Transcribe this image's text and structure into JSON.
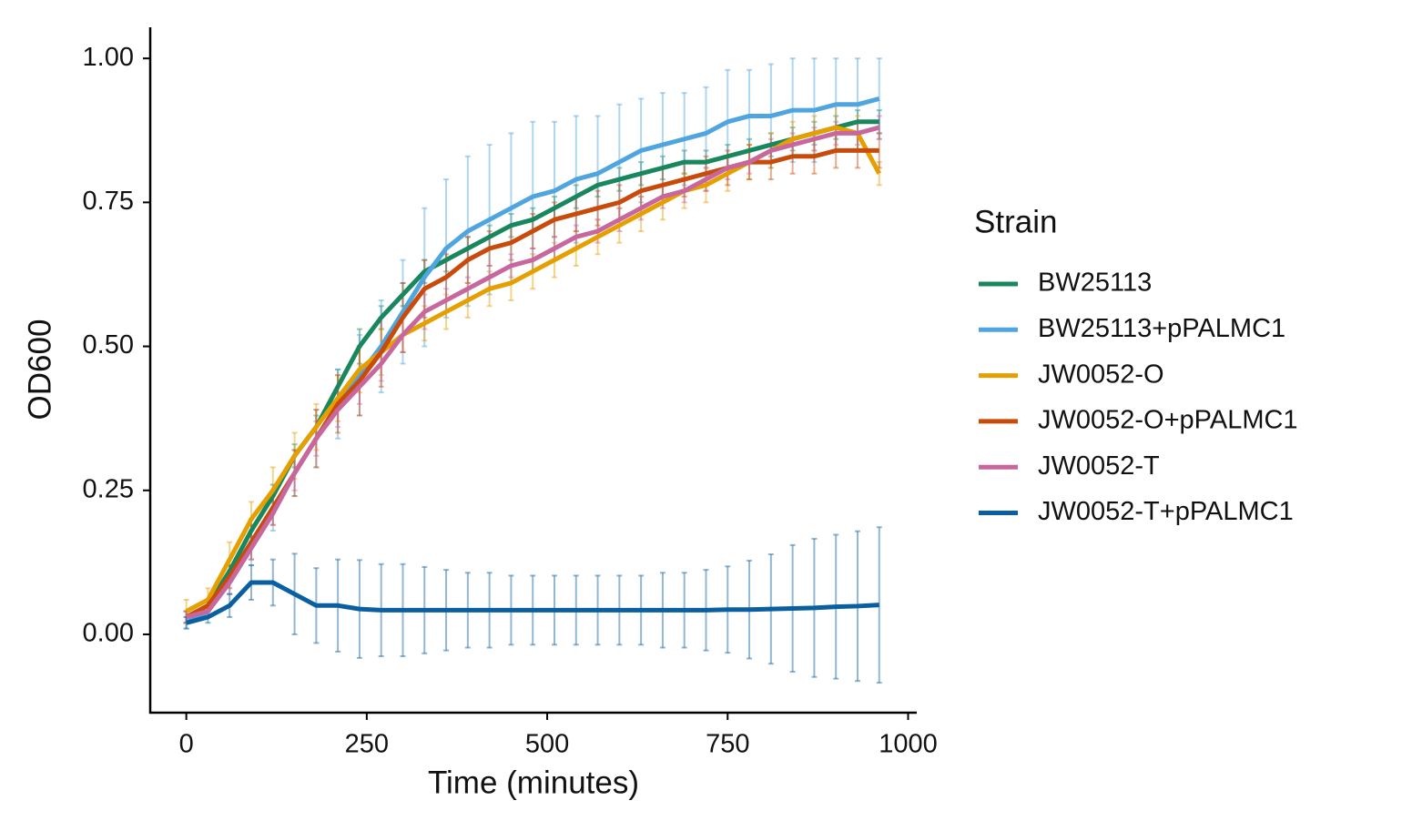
{
  "chart_data": {
    "type": "line",
    "x_label": "Time (minutes)",
    "y_label": "OD600",
    "legend_title": "Strain",
    "legend_position": "right",
    "xlim": [
      -50,
      1012
    ],
    "xticks": [
      0,
      250,
      500,
      750,
      1000
    ],
    "ylim": [
      -0.136,
      1.054
    ],
    "yticks": [
      {
        "value": 0,
        "label": "0.00"
      },
      {
        "value": 0.25,
        "label": "0.25"
      },
      {
        "value": 0.5,
        "label": "0.50"
      },
      {
        "value": 0.75,
        "label": "0.75"
      },
      {
        "value": 1,
        "label": "1.00"
      }
    ],
    "x": [
      0,
      30,
      60,
      90,
      120,
      150,
      180,
      210,
      240,
      270,
      300,
      330,
      360,
      390,
      420,
      450,
      480,
      510,
      540,
      570,
      600,
      630,
      660,
      690,
      720,
      750,
      780,
      810,
      840,
      870,
      900,
      930,
      960
    ],
    "series": [
      {
        "name": "BW25113",
        "color": "#18875d",
        "values": [
          0.03,
          0.05,
          0.11,
          0.18,
          0.24,
          0.31,
          0.36,
          0.43,
          0.5,
          0.55,
          0.59,
          0.63,
          0.65,
          0.67,
          0.69,
          0.71,
          0.72,
          0.74,
          0.76,
          0.78,
          0.79,
          0.8,
          0.81,
          0.82,
          0.82,
          0.83,
          0.84,
          0.85,
          0.86,
          0.87,
          0.88,
          0.89,
          0.89
        ],
        "errors": [
          0.01,
          0.01,
          0.01,
          0.02,
          0.02,
          0.02,
          0.02,
          0.03,
          0.03,
          0.02,
          0.02,
          0.02,
          0.02,
          0.02,
          0.02,
          0.02,
          0.02,
          0.02,
          0.02,
          0.02,
          0.02,
          0.02,
          0.02,
          0.02,
          0.02,
          0.02,
          0.02,
          0.02,
          0.02,
          0.02,
          0.02,
          0.02,
          0.02
        ]
      },
      {
        "name": "BW25113+pPALMC1",
        "color": "#4ea5e0",
        "values": [
          0.02,
          0.04,
          0.09,
          0.15,
          0.21,
          0.28,
          0.34,
          0.4,
          0.45,
          0.5,
          0.56,
          0.62,
          0.67,
          0.7,
          0.72,
          0.74,
          0.76,
          0.77,
          0.79,
          0.8,
          0.82,
          0.84,
          0.85,
          0.86,
          0.87,
          0.89,
          0.9,
          0.9,
          0.91,
          0.91,
          0.92,
          0.92,
          0.93
        ],
        "errors": [
          0.01,
          0.01,
          0.02,
          0.03,
          0.03,
          0.04,
          0.05,
          0.06,
          0.07,
          0.08,
          0.09,
          0.12,
          0.12,
          0.13,
          0.13,
          0.13,
          0.13,
          0.12,
          0.11,
          0.1,
          0.1,
          0.09,
          0.09,
          0.08,
          0.08,
          0.09,
          0.08,
          0.09,
          0.09,
          0.09,
          0.08,
          0.08,
          0.07
        ]
      },
      {
        "name": "JW0052-O",
        "color": "#e69f00",
        "values": [
          0.04,
          0.06,
          0.13,
          0.2,
          0.25,
          0.31,
          0.36,
          0.41,
          0.46,
          0.49,
          0.52,
          0.54,
          0.56,
          0.58,
          0.6,
          0.61,
          0.63,
          0.65,
          0.67,
          0.69,
          0.71,
          0.73,
          0.75,
          0.77,
          0.78,
          0.8,
          0.82,
          0.84,
          0.86,
          0.87,
          0.88,
          0.87,
          0.8
        ],
        "errors": [
          0.02,
          0.02,
          0.03,
          0.03,
          0.04,
          0.04,
          0.04,
          0.04,
          0.04,
          0.04,
          0.03,
          0.03,
          0.03,
          0.03,
          0.03,
          0.03,
          0.03,
          0.03,
          0.03,
          0.03,
          0.03,
          0.03,
          0.03,
          0.03,
          0.03,
          0.03,
          0.03,
          0.03,
          0.03,
          0.03,
          0.04,
          0.03,
          0.02
        ]
      },
      {
        "name": "JW0052-O+pPALMC1",
        "color": "#c94b0c",
        "values": [
          0.03,
          0.05,
          0.1,
          0.16,
          0.22,
          0.28,
          0.34,
          0.4,
          0.44,
          0.49,
          0.55,
          0.6,
          0.62,
          0.65,
          0.67,
          0.68,
          0.7,
          0.72,
          0.73,
          0.74,
          0.75,
          0.77,
          0.78,
          0.79,
          0.8,
          0.81,
          0.82,
          0.82,
          0.83,
          0.83,
          0.84,
          0.84,
          0.84
        ],
        "errors": [
          0.01,
          0.01,
          0.02,
          0.03,
          0.03,
          0.04,
          0.05,
          0.05,
          0.06,
          0.06,
          0.06,
          0.05,
          0.04,
          0.04,
          0.03,
          0.03,
          0.03,
          0.03,
          0.03,
          0.03,
          0.03,
          0.03,
          0.03,
          0.03,
          0.03,
          0.03,
          0.03,
          0.03,
          0.03,
          0.03,
          0.03,
          0.03,
          0.03
        ]
      },
      {
        "name": "JW0052-T",
        "color": "#c7679e",
        "values": [
          0.03,
          0.04,
          0.09,
          0.15,
          0.21,
          0.28,
          0.34,
          0.39,
          0.43,
          0.47,
          0.52,
          0.56,
          0.58,
          0.6,
          0.62,
          0.64,
          0.65,
          0.67,
          0.69,
          0.7,
          0.72,
          0.74,
          0.76,
          0.77,
          0.79,
          0.81,
          0.82,
          0.84,
          0.85,
          0.86,
          0.87,
          0.87,
          0.88
        ],
        "errors": [
          0.01,
          0.01,
          0.02,
          0.02,
          0.02,
          0.03,
          0.03,
          0.03,
          0.03,
          0.03,
          0.03,
          0.03,
          0.02,
          0.02,
          0.02,
          0.02,
          0.02,
          0.02,
          0.02,
          0.02,
          0.02,
          0.02,
          0.02,
          0.02,
          0.02,
          0.02,
          0.02,
          0.02,
          0.02,
          0.02,
          0.02,
          0.02,
          0.02
        ]
      },
      {
        "name": "JW0052-T+pPALMC1",
        "color": "#0a5fa0",
        "values": [
          0.02,
          0.03,
          0.05,
          0.09,
          0.09,
          0.07,
          0.05,
          0.05,
          0.044,
          0.042,
          0.042,
          0.042,
          0.042,
          0.042,
          0.042,
          0.042,
          0.042,
          0.042,
          0.042,
          0.042,
          0.042,
          0.042,
          0.042,
          0.042,
          0.042,
          0.043,
          0.043,
          0.044,
          0.045,
          0.046,
          0.048,
          0.049,
          0.051
        ],
        "errors": [
          0.01,
          0.01,
          0.02,
          0.03,
          0.04,
          0.07,
          0.065,
          0.08,
          0.085,
          0.08,
          0.08,
          0.075,
          0.07,
          0.065,
          0.065,
          0.06,
          0.06,
          0.06,
          0.06,
          0.06,
          0.06,
          0.06,
          0.065,
          0.065,
          0.07,
          0.075,
          0.085,
          0.095,
          0.11,
          0.12,
          0.125,
          0.13,
          0.135
        ]
      }
    ]
  }
}
